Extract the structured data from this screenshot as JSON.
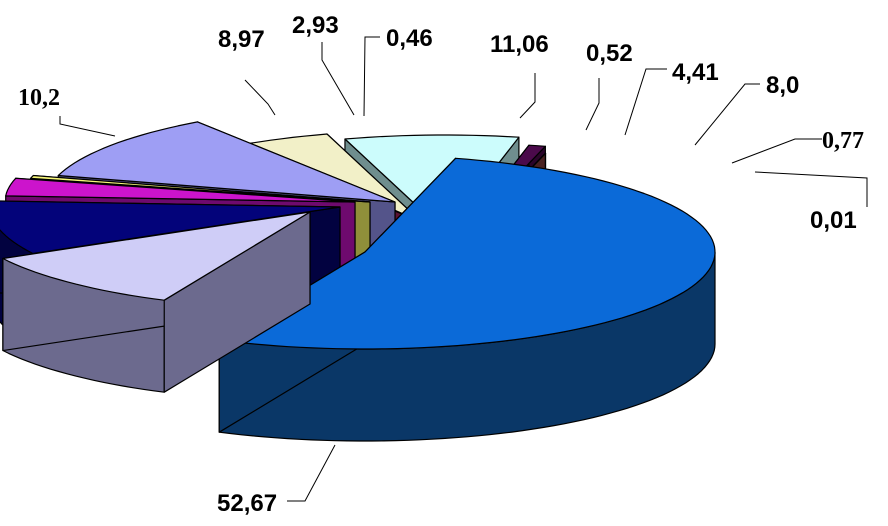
{
  "chart_data": {
    "type": "pie",
    "style": "3d-exploded",
    "legend": "none",
    "title": "",
    "slices": [
      {
        "label": "52,67",
        "value": 52.67,
        "color": "#0b6ad8",
        "side_color": "#0a3767"
      },
      {
        "label": "10,2",
        "value": 10.2,
        "color": "#cfcdf7",
        "side_color": "#6c6a8e"
      },
      {
        "label": "8,97",
        "value": 8.97,
        "color": "#03037a",
        "side_color": "#020240"
      },
      {
        "label": "2,93",
        "value": 2.93,
        "color": "#cc14cc",
        "side_color": "#6e0a6e"
      },
      {
        "label": "0,46",
        "value": 0.46,
        "color": "#f7f779",
        "side_color": "#8f8f3a"
      },
      {
        "label": "11,06",
        "value": 11.06,
        "color": "#9e9ef4",
        "side_color": "#54548a"
      },
      {
        "label": "0,52",
        "value": 0.52,
        "color": "#a0285e",
        "side_color": "#5a1232"
      },
      {
        "label": "4,41",
        "value": 4.41,
        "color": "#f2f0c8",
        "side_color": "#8a8870"
      },
      {
        "label": "8,0",
        "value": 8.0,
        "color": "#ccfcfc",
        "side_color": "#6f8e8e"
      },
      {
        "label": "0,77",
        "value": 0.77,
        "color": "#4b0a4b",
        "side_color": "#2a052a"
      },
      {
        "label": "0,01",
        "value": 0.01,
        "color": "#8a4240",
        "side_color": "#4a2221"
      }
    ]
  }
}
